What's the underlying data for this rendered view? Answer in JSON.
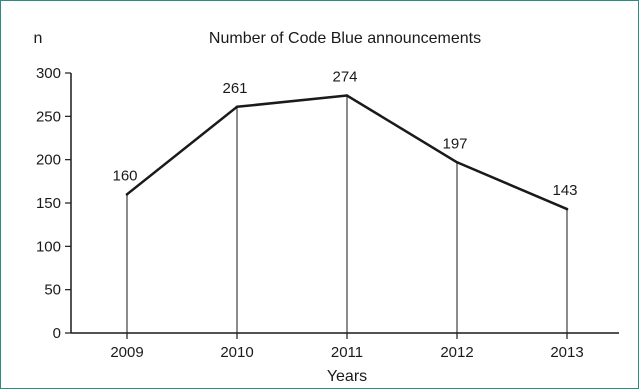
{
  "chart_data": {
    "type": "line",
    "title": "Number of Code Blue announcements",
    "ylabel": "n",
    "xlabel": "Years",
    "categories": [
      "2009",
      "2010",
      "2011",
      "2012",
      "2013"
    ],
    "values": [
      160,
      261,
      274,
      197,
      143
    ],
    "data_labels": [
      "160",
      "261",
      "274",
      "197",
      "143"
    ],
    "ylim": [
      0,
      300
    ],
    "yticks": [
      0,
      50,
      100,
      150,
      200,
      250,
      300
    ],
    "grid": false,
    "drop_lines": true,
    "legend": "none",
    "colors": {
      "line": "#1a1a1a",
      "axis": "#1a1a1a",
      "frame": "#2e8b84"
    }
  }
}
